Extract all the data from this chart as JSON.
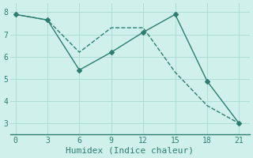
{
  "line_solid_x": [
    0,
    3,
    6,
    9,
    12,
    15,
    18,
    21
  ],
  "line_solid_y": [
    7.9,
    7.65,
    5.4,
    6.2,
    7.1,
    7.9,
    4.9,
    3.0
  ],
  "line_dashed_x": [
    0,
    3,
    6,
    9,
    12,
    15,
    18,
    21
  ],
  "line_dashed_y": [
    7.9,
    7.65,
    6.2,
    7.3,
    7.3,
    5.3,
    3.8,
    3.0
  ],
  "color": "#2e7d70",
  "bg_color": "#cff0eb",
  "xlabel": "Humidex (Indice chaleur)",
  "xlim": [
    -0.5,
    22
  ],
  "ylim": [
    2.5,
    8.4
  ],
  "xticks": [
    0,
    3,
    6,
    9,
    12,
    15,
    18,
    21
  ],
  "yticks": [
    3,
    4,
    5,
    6,
    7,
    8
  ],
  "grid_color": "#aedcd6",
  "font_family": "monospace",
  "tick_fontsize": 7,
  "xlabel_fontsize": 8
}
